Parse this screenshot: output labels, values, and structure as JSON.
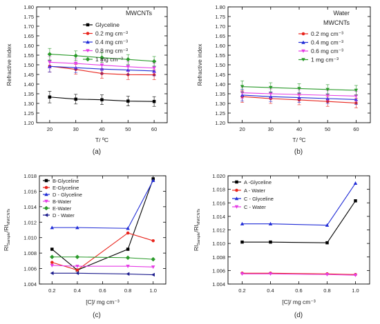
{
  "chart_data": [
    {
      "id": "a",
      "type": "line",
      "caption": "(a)",
      "xlabel": "T/ ºC",
      "ylabel": "Refractive index",
      "xlim": [
        15,
        65
      ],
      "ylim": [
        1.2,
        1.8
      ],
      "xticks": [
        20,
        30,
        40,
        50,
        60
      ],
      "yticks": [
        1.2,
        1.25,
        1.3,
        1.35,
        1.4,
        1.45,
        1.5,
        1.55,
        1.6,
        1.65,
        1.7,
        1.75,
        1.8
      ],
      "ytick_decimals": 2,
      "legend_title": [
        "MWCNTs"
      ],
      "legend_position": "top-right",
      "error_bars": true,
      "x": [
        20,
        30,
        40,
        50,
        60
      ],
      "series": [
        {
          "name": "Glyceline",
          "color": "#000000",
          "marker": "square",
          "values": [
            1.333,
            1.322,
            1.319,
            1.312,
            1.31
          ],
          "err": [
            0.03,
            0.025,
            0.025,
            0.025,
            0.025
          ]
        },
        {
          "name": "0.2 mg cm⁻³",
          "color": "#e8231b",
          "marker": "circle",
          "values": [
            1.493,
            1.476,
            1.455,
            1.449,
            1.448
          ],
          "err": [
            0.03,
            0.025,
            0.025,
            0.025,
            0.025
          ]
        },
        {
          "name": "0.4 mg cm⁻³",
          "color": "#1f2bd6",
          "marker": "triangle-up",
          "values": [
            1.492,
            1.485,
            1.478,
            1.473,
            1.468
          ],
          "err": [
            0.03,
            0.025,
            0.025,
            0.025,
            0.025
          ]
        },
        {
          "name": "0.8 mg cm⁻³",
          "color": "#e53ce5",
          "marker": "triangle-down",
          "values": [
            1.513,
            1.507,
            1.498,
            1.49,
            1.483
          ],
          "err": [
            0.03,
            0.025,
            0.025,
            0.025,
            0.025
          ]
        },
        {
          "name": "1 mg cm⁻³",
          "color": "#2a9a2a",
          "marker": "diamond",
          "values": [
            1.555,
            1.547,
            1.537,
            1.528,
            1.518
          ],
          "err": [
            0.03,
            0.025,
            0.025,
            0.025,
            0.025
          ]
        }
      ]
    },
    {
      "id": "b",
      "type": "line",
      "caption": "(b)",
      "xlabel": "T/ ºC",
      "ylabel": "Refractive index",
      "xlim": [
        15,
        65
      ],
      "ylim": [
        1.2,
        1.8
      ],
      "xticks": [
        20,
        30,
        40,
        50,
        60
      ],
      "yticks": [
        1.2,
        1.25,
        1.3,
        1.35,
        1.4,
        1.45,
        1.5,
        1.55,
        1.6,
        1.65,
        1.7,
        1.75,
        1.8
      ],
      "ytick_decimals": 2,
      "legend_title": [
        "Water",
        "MWCNTs"
      ],
      "legend_position": "top-right",
      "error_bars": true,
      "x": [
        20,
        30,
        40,
        50,
        60
      ],
      "series": [
        {
          "name": "0.2 mg cm⁻³",
          "color": "#e8231b",
          "marker": "circle",
          "values": [
            1.335,
            1.325,
            1.318,
            1.31,
            1.302
          ],
          "err": [
            0.03,
            0.025,
            0.025,
            0.025,
            0.025
          ]
        },
        {
          "name": "0.4 mg cm⁻³",
          "color": "#1f2bd6",
          "marker": "triangle-up",
          "values": [
            1.343,
            1.335,
            1.33,
            1.325,
            1.32
          ],
          "err": [
            0.03,
            0.025,
            0.025,
            0.025,
            0.025
          ]
        },
        {
          "name": "0.6 mg cm⁻³",
          "color": "#e53ce5",
          "marker": "triangle-down",
          "values": [
            1.355,
            1.35,
            1.346,
            1.342,
            1.338
          ],
          "err": [
            0.03,
            0.025,
            0.025,
            0.025,
            0.025
          ]
        },
        {
          "name": "1 mg cm⁻³",
          "color": "#2a9a2a",
          "marker": "triangle-down",
          "values": [
            1.387,
            1.382,
            1.377,
            1.372,
            1.368
          ],
          "err": [
            0.03,
            0.025,
            0.025,
            0.025,
            0.025
          ]
        }
      ]
    },
    {
      "id": "c",
      "type": "line",
      "caption": "(c)",
      "xlabel": "[C]/ mg cm⁻³",
      "ylabel": "RI_Sample/RI_MWCNTs",
      "xlim": [
        0.1,
        1.1
      ],
      "ylim": [
        1.004,
        1.018
      ],
      "xticks": [
        0.2,
        0.4,
        0.6,
        0.8,
        1.0
      ],
      "yticks": [
        1.004,
        1.006,
        1.008,
        1.01,
        1.012,
        1.014,
        1.016,
        1.018
      ],
      "ytick_decimals": 3,
      "legend_position": "top-left",
      "x": [
        0.2,
        0.4,
        0.8,
        1.0
      ],
      "series": [
        {
          "name": "B-Glyceline",
          "color": "#000000",
          "marker": "square",
          "values": [
            1.0085,
            1.0058,
            1.0085,
            1.0176
          ]
        },
        {
          "name": "E-Glyceline",
          "color": "#e8231b",
          "marker": "circle",
          "values": [
            1.0068,
            1.0058,
            1.0106,
            1.0096
          ]
        },
        {
          "name": "D - Glyceline",
          "color": "#1f2bd6",
          "marker": "triangle-up",
          "values": [
            1.0113,
            1.0113,
            1.0112,
            1.0174
          ]
        },
        {
          "name": "B-Water",
          "color": "#e53ce5",
          "marker": "triangle-down",
          "values": [
            1.0064,
            1.0063,
            1.0063,
            1.0062
          ]
        },
        {
          "name": "E-Water",
          "color": "#2a9a2a",
          "marker": "diamond",
          "values": [
            1.0075,
            1.0075,
            1.0074,
            1.0072
          ]
        },
        {
          "name": "D - Water",
          "color": "#1a1a8c",
          "marker": "triangle-left",
          "values": [
            1.0054,
            1.0054,
            1.0053,
            1.0052
          ]
        }
      ]
    },
    {
      "id": "d",
      "type": "line",
      "caption": "(d)",
      "xlabel": "[C]/ mg cm⁻³",
      "ylabel": "RI_Sample/RI_MWCNTs",
      "xlim": [
        0.1,
        1.1
      ],
      "ylim": [
        1.004,
        1.02
      ],
      "xticks": [
        0.2,
        0.4,
        0.6,
        0.8,
        1.0
      ],
      "yticks": [
        1.004,
        1.006,
        1.008,
        1.01,
        1.012,
        1.014,
        1.016,
        1.018,
        1.02
      ],
      "ytick_decimals": 3,
      "legend_position": "top-left",
      "x": [
        0.2,
        0.4,
        0.8,
        1.0
      ],
      "series": [
        {
          "name": "A -Glyceline",
          "color": "#000000",
          "marker": "square",
          "values": [
            1.0102,
            1.0102,
            1.0101,
            1.0163
          ]
        },
        {
          "name": "A - Water",
          "color": "#e8231b",
          "marker": "circle",
          "values": [
            1.0056,
            1.0056,
            1.0055,
            1.0054
          ]
        },
        {
          "name": "C - Glyceline",
          "color": "#1f2bd6",
          "marker": "triangle-up",
          "values": [
            1.0129,
            1.0129,
            1.0127,
            1.0189
          ]
        },
        {
          "name": "C - Water",
          "color": "#e53ce5",
          "marker": "triangle-down",
          "values": [
            1.0055,
            1.0055,
            1.0054,
            1.0053
          ]
        }
      ]
    }
  ]
}
